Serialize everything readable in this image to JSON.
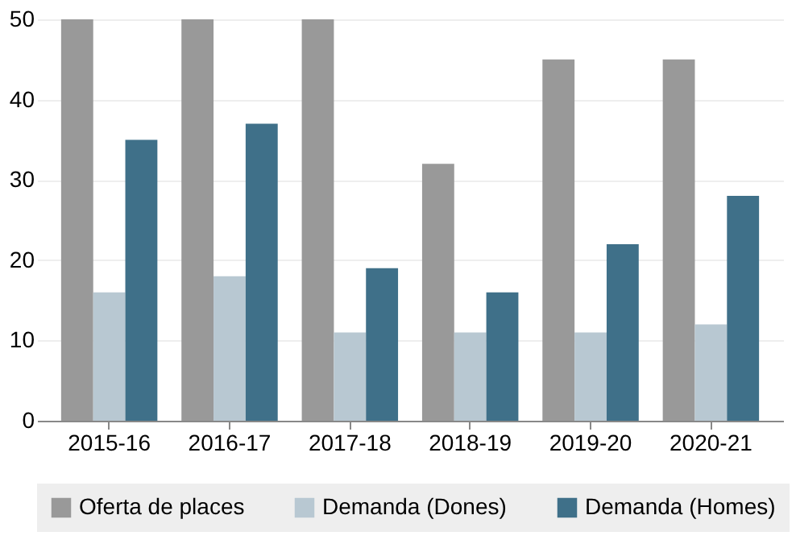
{
  "chart_data": {
    "type": "bar",
    "categories": [
      "2015-16",
      "2016-17",
      "2017-18",
      "2018-19",
      "2019-20",
      "2020-21"
    ],
    "series": [
      {
        "name": "Oferta de places",
        "color": "#999999",
        "values": [
          50,
          50,
          50,
          32,
          45,
          45
        ]
      },
      {
        "name": "Demanda (Dones)",
        "color": "#b8c8d2",
        "values": [
          16,
          18,
          11,
          11,
          11,
          12
        ]
      },
      {
        "name": "Demanda (Homes)",
        "color": "#3f7089",
        "values": [
          35,
          37,
          19,
          16,
          22,
          28
        ]
      }
    ],
    "ylim": [
      0,
      50
    ],
    "yticks": [
      0,
      10,
      20,
      30,
      40,
      50
    ],
    "grid": "y",
    "legend": "bottom"
  }
}
